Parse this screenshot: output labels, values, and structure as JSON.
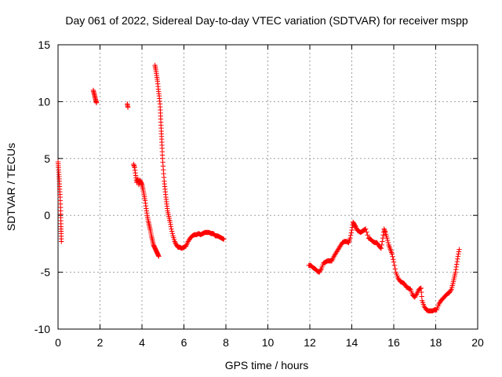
{
  "chart_data": {
    "type": "scatter",
    "title": "Day 061 of 2022, Sidereal Day-to-day VTEC variation (SDTVAR) for receiver mspp",
    "xlabel": "GPS time / hours",
    "ylabel": "SDTVAR / TECUs",
    "xlim": [
      0,
      20
    ],
    "ylim": [
      -10,
      15
    ],
    "xticks": [
      0,
      2,
      4,
      6,
      8,
      10,
      12,
      14,
      16,
      18,
      20
    ],
    "yticks": [
      -10,
      -5,
      0,
      5,
      10,
      15
    ],
    "xtick_labels": [
      "0",
      "2",
      "4",
      "6",
      "8",
      "10",
      "12",
      "14",
      "16",
      "18",
      "20"
    ],
    "ytick_labels": [
      "-10",
      "-5",
      "0",
      "5",
      "10",
      "15"
    ],
    "grid": true,
    "marker": "+",
    "series": [
      {
        "name": "SDTVAR",
        "color": "#ff0000",
        "segments": [
          [
            [
              0.0,
              4.7
            ],
            [
              0.02,
              4.2
            ],
            [
              0.04,
              3.6
            ],
            [
              0.06,
              3.0
            ],
            [
              0.08,
              2.3
            ],
            [
              0.1,
              1.6
            ],
            [
              0.12,
              0.7
            ],
            [
              0.13,
              -0.2
            ],
            [
              0.14,
              -1.0
            ],
            [
              0.15,
              -1.6
            ],
            [
              0.16,
              -2.3
            ]
          ],
          [
            [
              1.68,
              11.0
            ],
            [
              1.72,
              10.7
            ],
            [
              1.76,
              10.4
            ],
            [
              1.8,
              10.1
            ],
            [
              1.83,
              9.9
            ]
          ],
          [
            [
              3.3,
              9.8
            ],
            [
              3.33,
              9.5
            ]
          ],
          [
            [
              3.6,
              4.5
            ],
            [
              3.65,
              4.2
            ],
            [
              3.7,
              3.5
            ],
            [
              3.75,
              2.9
            ],
            [
              3.8,
              3.2
            ],
            [
              3.85,
              2.7
            ],
            [
              3.9,
              3.1
            ],
            [
              3.95,
              2.9
            ],
            [
              4.0,
              2.7
            ],
            [
              4.05,
              2.3
            ],
            [
              4.1,
              1.8
            ],
            [
              4.15,
              1.3
            ],
            [
              4.2,
              0.6
            ],
            [
              4.25,
              0.0
            ],
            [
              4.3,
              -0.5
            ],
            [
              4.35,
              -0.9
            ],
            [
              4.4,
              -1.3
            ],
            [
              4.45,
              -1.8
            ],
            [
              4.5,
              -2.2
            ],
            [
              4.55,
              -2.6
            ],
            [
              4.6,
              -2.8
            ],
            [
              4.65,
              -3.0
            ],
            [
              4.7,
              -3.2
            ],
            [
              4.75,
              -3.4
            ],
            [
              4.8,
              -3.6
            ]
          ],
          [
            [
              4.62,
              13.2
            ],
            [
              4.66,
              12.8
            ],
            [
              4.7,
              12.3
            ],
            [
              4.74,
              11.8
            ],
            [
              4.78,
              11.1
            ],
            [
              4.82,
              10.5
            ],
            [
              4.86,
              9.8
            ],
            [
              4.88,
              9.0
            ],
            [
              4.9,
              8.2
            ],
            [
              4.92,
              7.4
            ],
            [
              4.94,
              6.7
            ],
            [
              4.96,
              5.9
            ],
            [
              4.98,
              5.0
            ],
            [
              5.02,
              4.0
            ],
            [
              5.06,
              3.0
            ],
            [
              5.1,
              2.3
            ],
            [
              5.14,
              1.6
            ],
            [
              5.18,
              1.0
            ],
            [
              5.22,
              0.4
            ],
            [
              5.28,
              -0.1
            ],
            [
              5.34,
              -0.6
            ],
            [
              5.4,
              -1.2
            ],
            [
              5.48,
              -1.8
            ],
            [
              5.56,
              -2.3
            ],
            [
              5.64,
              -2.6
            ],
            [
              5.72,
              -2.8
            ],
            [
              5.8,
              -2.8
            ],
            [
              5.9,
              -2.9
            ],
            [
              6.0,
              -2.8
            ],
            [
              6.1,
              -2.7
            ],
            [
              6.2,
              -2.3
            ],
            [
              6.3,
              -2.0
            ],
            [
              6.4,
              -1.8
            ],
            [
              6.5,
              -1.7
            ],
            [
              6.6,
              -1.7
            ],
            [
              6.7,
              -1.6
            ],
            [
              6.8,
              -1.7
            ],
            [
              6.9,
              -1.6
            ],
            [
              7.0,
              -1.5
            ],
            [
              7.1,
              -1.5
            ],
            [
              7.2,
              -1.5
            ],
            [
              7.3,
              -1.6
            ],
            [
              7.4,
              -1.6
            ],
            [
              7.5,
              -1.8
            ],
            [
              7.6,
              -1.8
            ],
            [
              7.7,
              -1.9
            ],
            [
              7.8,
              -2.0
            ],
            [
              7.9,
              -2.1
            ]
          ],
          [
            [
              11.95,
              -4.4
            ],
            [
              12.05,
              -4.4
            ],
            [
              12.15,
              -4.6
            ],
            [
              12.25,
              -4.7
            ],
            [
              12.35,
              -4.9
            ],
            [
              12.45,
              -5.0
            ],
            [
              12.55,
              -4.7
            ],
            [
              12.65,
              -4.2
            ],
            [
              12.75,
              -4.1
            ],
            [
              12.85,
              -4.0
            ],
            [
              12.95,
              -4.0
            ],
            [
              13.05,
              -4.0
            ],
            [
              13.15,
              -3.6
            ],
            [
              13.25,
              -3.3
            ],
            [
              13.35,
              -3.0
            ],
            [
              13.45,
              -2.7
            ],
            [
              13.55,
              -2.4
            ],
            [
              13.65,
              -2.3
            ],
            [
              13.75,
              -2.3
            ],
            [
              13.85,
              -2.4
            ],
            [
              13.92,
              -2.0
            ],
            [
              14.0,
              -1.3
            ],
            [
              14.06,
              -0.6
            ],
            [
              14.12,
              -0.8
            ],
            [
              14.18,
              -1.0
            ],
            [
              14.26,
              -1.3
            ],
            [
              14.34,
              -1.4
            ],
            [
              14.42,
              -1.5
            ],
            [
              14.5,
              -1.4
            ],
            [
              14.58,
              -1.3
            ],
            [
              14.66,
              -1.2
            ],
            [
              14.8,
              -2.0
            ],
            [
              14.9,
              -2.1
            ],
            [
              15.0,
              -2.3
            ],
            [
              15.1,
              -2.4
            ],
            [
              15.2,
              -2.4
            ],
            [
              15.3,
              -2.7
            ],
            [
              15.4,
              -2.9
            ],
            [
              15.48,
              -2.0
            ],
            [
              15.54,
              -1.2
            ],
            [
              15.6,
              -1.5
            ],
            [
              15.68,
              -2.0
            ],
            [
              15.76,
              -2.6
            ],
            [
              15.84,
              -3.0
            ],
            [
              15.92,
              -3.4
            ],
            [
              16.0,
              -4.1
            ],
            [
              16.1,
              -5.0
            ],
            [
              16.2,
              -5.5
            ],
            [
              16.3,
              -5.8
            ],
            [
              16.4,
              -5.9
            ],
            [
              16.5,
              -6.0
            ],
            [
              16.6,
              -6.3
            ],
            [
              16.7,
              -6.4
            ],
            [
              16.8,
              -6.5
            ],
            [
              16.9,
              -7.0
            ],
            [
              17.0,
              -7.2
            ],
            [
              17.1,
              -6.9
            ],
            [
              17.2,
              -6.5
            ],
            [
              17.3,
              -6.4
            ],
            [
              17.35,
              -7.5
            ],
            [
              17.45,
              -8.0
            ],
            [
              17.55,
              -8.3
            ],
            [
              17.65,
              -8.4
            ],
            [
              17.75,
              -8.4
            ],
            [
              17.85,
              -8.4
            ],
            [
              17.95,
              -8.3
            ],
            [
              18.05,
              -8.3
            ],
            [
              18.15,
              -7.8
            ],
            [
              18.25,
              -7.5
            ],
            [
              18.35,
              -7.3
            ],
            [
              18.45,
              -7.1
            ],
            [
              18.55,
              -6.9
            ],
            [
              18.65,
              -6.8
            ],
            [
              18.75,
              -6.5
            ],
            [
              18.82,
              -6.0
            ],
            [
              18.88,
              -5.5
            ],
            [
              18.94,
              -5.0
            ],
            [
              19.0,
              -4.3
            ],
            [
              19.06,
              -3.6
            ],
            [
              19.12,
              -3.0
            ]
          ]
        ]
      }
    ]
  }
}
